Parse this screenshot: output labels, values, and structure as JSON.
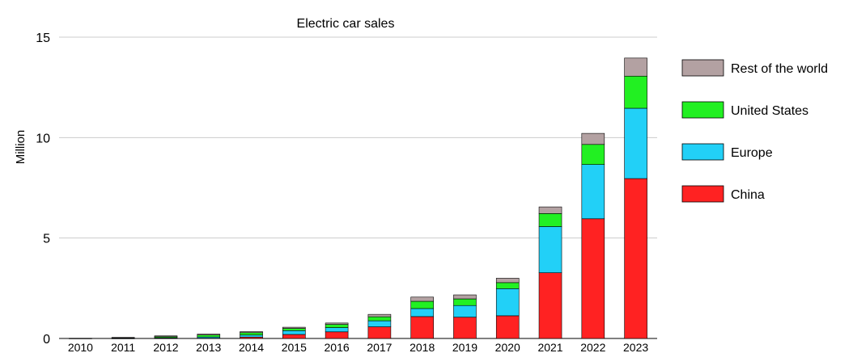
{
  "chart_data": {
    "type": "bar",
    "stacked": true,
    "title": "Electric car sales",
    "xlabel": "",
    "ylabel": "Million",
    "ylim": [
      0,
      15
    ],
    "yticks": [
      "0",
      "5",
      "10",
      "15"
    ],
    "grid": "horizontal",
    "legend_position": "right",
    "categories": [
      "2010",
      "2011",
      "2012",
      "2013",
      "2014",
      "2015",
      "2016",
      "2017",
      "2018",
      "2019",
      "2020",
      "2021",
      "2022",
      "2023"
    ],
    "series": [
      {
        "name": "China",
        "color": "#ff2222",
        "values": [
          0.0,
          0.005,
          0.01,
          0.015,
          0.07,
          0.2,
          0.33,
          0.58,
          1.09,
          1.06,
          1.13,
          3.27,
          5.96,
          7.96
        ]
      },
      {
        "name": "Europe",
        "color": "#22d0f7",
        "values": [
          0.002,
          0.01,
          0.03,
          0.06,
          0.1,
          0.19,
          0.21,
          0.3,
          0.4,
          0.58,
          1.35,
          2.3,
          2.7,
          3.5
        ]
      },
      {
        "name": "United States",
        "color": "#22f022",
        "values": [
          0.0,
          0.017,
          0.05,
          0.1,
          0.12,
          0.11,
          0.16,
          0.2,
          0.36,
          0.33,
          0.3,
          0.65,
          1.0,
          1.6
        ]
      },
      {
        "name": "Rest of the world",
        "color": "#b3a1a2",
        "values": [
          0.01,
          0.02,
          0.04,
          0.04,
          0.05,
          0.06,
          0.07,
          0.12,
          0.21,
          0.2,
          0.22,
          0.33,
          0.55,
          0.9
        ]
      }
    ]
  }
}
